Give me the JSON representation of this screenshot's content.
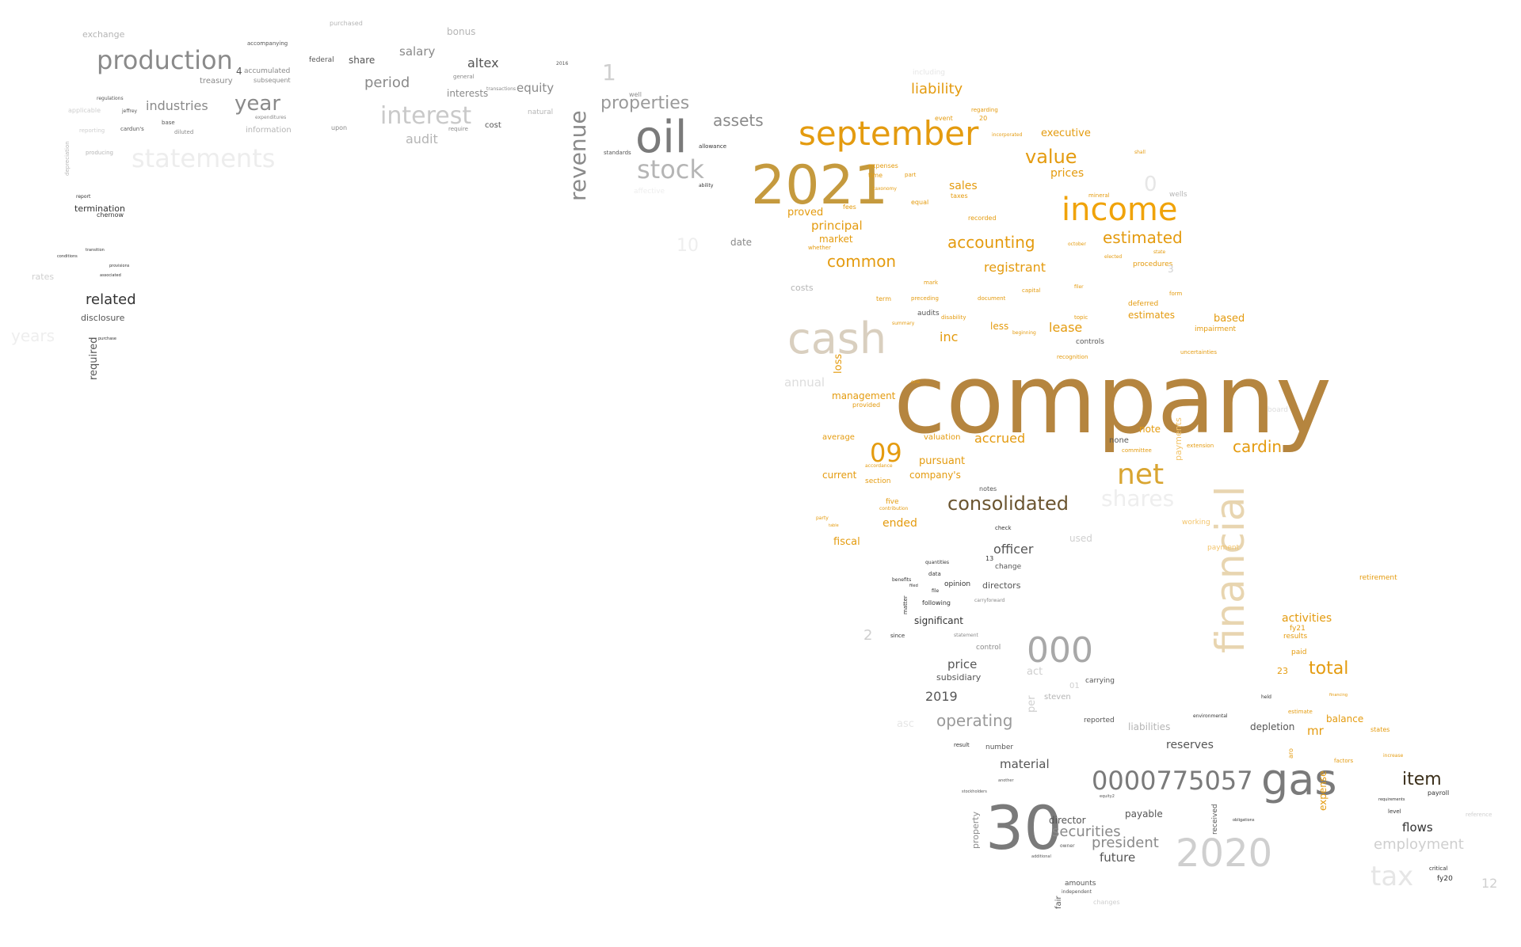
{
  "words": [
    {
      "t": "company",
      "c": "#b5853f"
    },
    {
      "t": "2021",
      "c": "#c59a3e"
    },
    {
      "t": "september",
      "c": "#e49b0f"
    },
    {
      "t": "income",
      "c": "#f0a30a"
    },
    {
      "t": "net",
      "c": "#d9a531"
    },
    {
      "t": "financial",
      "c": "#e8d5b0"
    },
    {
      "t": "cash",
      "c": "#d9cfbf"
    },
    {
      "t": "oil",
      "c": "#7a7a7a"
    },
    {
      "t": "gas",
      "c": "#7a7a7a"
    },
    {
      "t": "30",
      "c": "#7a7a7a"
    },
    {
      "t": "2020",
      "c": "#cfcfcf"
    },
    {
      "t": "0000775057",
      "c": "#7a7a7a"
    },
    {
      "t": "000",
      "c": "#a8a8a8"
    },
    {
      "t": "production",
      "c": "#8a8a8a"
    },
    {
      "t": "statements",
      "c": "#ededed"
    },
    {
      "t": "interest",
      "c": "#c9c9c9"
    },
    {
      "t": "revenue",
      "c": "#8a8a8a"
    },
    {
      "t": "stock",
      "c": "#b5b5b5"
    },
    {
      "t": "year",
      "c": "#8a8a8a"
    },
    {
      "t": "properties",
      "c": "#9a9a9a"
    },
    {
      "t": "assets",
      "c": "#8a8a8a"
    },
    {
      "t": "consolidated",
      "c": "#6b5530"
    },
    {
      "t": "09",
      "c": "#e49b0f"
    },
    {
      "t": "value",
      "c": "#e49b0f"
    },
    {
      "t": "estimated",
      "c": "#e49b0f"
    },
    {
      "t": "accounting",
      "c": "#e49b0f"
    },
    {
      "t": "common",
      "c": "#e49b0f"
    },
    {
      "t": "cardin",
      "c": "#e49b0f"
    },
    {
      "t": "liability",
      "c": "#e49b0f"
    },
    {
      "t": "shares",
      "c": "#eeeeee"
    },
    {
      "t": "item",
      "c": "#3b2f1a"
    },
    {
      "t": "total",
      "c": "#e49b0f"
    },
    {
      "t": "tax",
      "c": "#e6e6e6"
    },
    {
      "t": "employment",
      "c": "#cfcfcf"
    },
    {
      "t": "operating",
      "c": "#9a9a9a"
    },
    {
      "t": "securities",
      "c": "#8a8a8a"
    },
    {
      "t": "president",
      "c": "#8a8a8a"
    },
    {
      "t": "related",
      "c": "#333333"
    },
    {
      "t": "officer",
      "c": "#555555"
    },
    {
      "t": "registrant",
      "c": "#e49b0f"
    },
    {
      "t": "inc",
      "c": "#e49b0f"
    },
    {
      "t": "lease",
      "c": "#e49b0f"
    },
    {
      "t": "accrued",
      "c": "#e49b0f"
    },
    {
      "t": "period",
      "c": "#8a8a8a"
    },
    {
      "t": "industries",
      "c": "#8a8a8a"
    },
    {
      "t": "altex",
      "c": "#555555"
    },
    {
      "t": "salary",
      "c": "#8a8a8a"
    },
    {
      "t": "audit",
      "c": "#b5b5b5"
    },
    {
      "t": "equity",
      "c": "#8a8a8a"
    },
    {
      "t": "price",
      "c": "#555555"
    },
    {
      "t": "2019",
      "c": "#555555"
    },
    {
      "t": "reserves",
      "c": "#555555"
    },
    {
      "t": "material",
      "c": "#555555"
    },
    {
      "t": "flows",
      "c": "#333333"
    },
    {
      "t": "future",
      "c": "#555555"
    },
    {
      "t": "activities",
      "c": "#e49b0f"
    },
    {
      "t": "mr",
      "c": "#e49b0f"
    },
    {
      "t": "principal",
      "c": "#e49b0f"
    },
    {
      "t": "sales",
      "c": "#e49b0f"
    },
    {
      "t": "management",
      "c": "#e49b0f"
    },
    {
      "t": "pursuant",
      "c": "#e49b0f"
    },
    {
      "t": "fiscal",
      "c": "#e49b0f"
    },
    {
      "t": "ended",
      "c": "#e49b0f"
    },
    {
      "t": "prices",
      "c": "#e49b0f"
    },
    {
      "t": "executive",
      "c": "#e49b0f"
    },
    {
      "t": "estimates",
      "c": "#e49b0f"
    },
    {
      "t": "based",
      "c": "#e49b0f"
    },
    {
      "t": "proved",
      "c": "#e49b0f"
    },
    {
      "t": "market",
      "c": "#e49b0f"
    },
    {
      "t": "current",
      "c": "#e49b0f"
    },
    {
      "t": "company's",
      "c": "#e49b0f"
    },
    {
      "t": "balance",
      "c": "#e49b0f"
    },
    {
      "t": "expense",
      "c": "#e49b0f"
    },
    {
      "t": "payments",
      "c": "#f3c46a"
    },
    {
      "t": "loss",
      "c": "#e49b0f"
    },
    {
      "t": "significant",
      "c": "#333333"
    },
    {
      "t": "directors",
      "c": "#555555"
    },
    {
      "t": "subsidiary",
      "c": "#555555"
    },
    {
      "t": "depletion",
      "c": "#555555"
    },
    {
      "t": "payable",
      "c": "#555555"
    },
    {
      "t": "director",
      "c": "#555555"
    },
    {
      "t": "disclosure",
      "c": "#555555"
    },
    {
      "t": "termination",
      "c": "#333333"
    },
    {
      "t": "required",
      "c": "#555555"
    },
    {
      "t": "share",
      "c": "#555555"
    },
    {
      "t": "interests",
      "c": "#8a8a8a"
    },
    {
      "t": "bonus",
      "c": "#b5b5b5"
    },
    {
      "t": "exchange",
      "c": "#b5b5b5"
    },
    {
      "t": "treasury",
      "c": "#8a8a8a"
    },
    {
      "t": "accumulated",
      "c": "#8a8a8a"
    },
    {
      "t": "1",
      "c": "#cfcfcf"
    },
    {
      "t": "0",
      "c": "#e6e6e6"
    },
    {
      "t": "10",
      "c": "#eeeeee"
    },
    {
      "t": "2",
      "c": "#cfcfcf"
    },
    {
      "t": "12",
      "c": "#cfcfcf"
    },
    {
      "t": "23",
      "c": "#e49b0f"
    },
    {
      "t": "fy21",
      "c": "#e49b0f"
    },
    {
      "t": "fy20",
      "c": "#333333"
    },
    {
      "t": "date",
      "c": "#8a8a8a"
    },
    {
      "t": "costs",
      "c": "#b5b5b5"
    },
    {
      "t": "annual",
      "c": "#dddddd"
    },
    {
      "t": "used",
      "c": "#cfcfcf"
    },
    {
      "t": "act",
      "c": "#cfcfcf"
    },
    {
      "t": "liabilities",
      "c": "#b5b5b5"
    },
    {
      "t": "property",
      "c": "#8a8a8a"
    },
    {
      "t": "received",
      "c": "#555555"
    },
    {
      "t": "rates",
      "c": "#cfcfcf"
    },
    {
      "t": "years",
      "c": "#eeeeee"
    },
    {
      "t": "information",
      "c": "#b5b5b5"
    },
    {
      "t": "federal",
      "c": "#555555"
    },
    {
      "t": "cost",
      "c": "#555555"
    },
    {
      "t": "retirement",
      "c": "#e49b0f"
    },
    {
      "t": "results",
      "c": "#e49b0f"
    },
    {
      "t": "impairment",
      "c": "#e49b0f"
    },
    {
      "t": "deferred",
      "c": "#e49b0f"
    },
    {
      "t": "valuation",
      "c": "#e49b0f"
    },
    {
      "t": "average",
      "c": "#e49b0f"
    },
    {
      "t": "note",
      "c": "#e49b0f"
    },
    {
      "t": "five",
      "c": "#e49b0f"
    },
    {
      "t": "none",
      "c": "#555555"
    },
    {
      "t": "audits",
      "c": "#555555"
    },
    {
      "t": "controls",
      "c": "#555555"
    },
    {
      "t": "procedures",
      "c": "#e49b0f"
    },
    {
      "t": "wells",
      "c": "#b5b5b5"
    },
    {
      "t": "less",
      "c": "#e49b0f"
    },
    {
      "t": "working",
      "c": "#f3c46a"
    },
    {
      "t": "payment",
      "c": "#f3c46a"
    },
    {
      "t": "steven",
      "c": "#b5b5b5"
    },
    {
      "t": "reported",
      "c": "#555555"
    },
    {
      "t": "carrying",
      "c": "#555555"
    },
    {
      "t": "number",
      "c": "#555555"
    },
    {
      "t": "amounts",
      "c": "#555555"
    },
    {
      "t": "fair",
      "c": "#555555"
    },
    {
      "t": "per",
      "c": "#cfcfcf"
    },
    {
      "t": "change",
      "c": "#555555"
    },
    {
      "t": "notes",
      "c": "#555555"
    },
    {
      "t": "opinion",
      "c": "#333333"
    },
    {
      "t": "control",
      "c": "#8a8a8a"
    },
    {
      "t": "payroll",
      "c": "#333333"
    },
    {
      "t": "critical",
      "c": "#333333"
    },
    {
      "t": "level",
      "c": "#333333"
    },
    {
      "t": "states",
      "c": "#e49b0f"
    },
    {
      "t": "aro",
      "c": "#e49b0f"
    },
    {
      "t": "paid",
      "c": "#e49b0f"
    },
    {
      "t": "section",
      "c": "#e49b0f"
    },
    {
      "t": "term",
      "c": "#e49b0f"
    },
    {
      "t": "equal",
      "c": "#e49b0f"
    },
    {
      "t": "recorded",
      "c": "#e49b0f"
    },
    {
      "t": "provided",
      "c": "#e49b0f"
    },
    {
      "t": "fees",
      "c": "#e49b0f"
    },
    {
      "t": "mineral",
      "c": "#e49b0f"
    },
    {
      "t": "form",
      "c": "#e49b0f"
    },
    {
      "t": "mark",
      "c": "#e49b0f"
    },
    {
      "t": "capital",
      "c": "#e49b0f"
    },
    {
      "t": "topic",
      "c": "#e49b0f"
    },
    {
      "t": "event",
      "c": "#e49b0f"
    },
    {
      "t": "including",
      "c": "#e6e6e6"
    },
    {
      "t": "regarding",
      "c": "#e49b0f"
    },
    {
      "t": "document",
      "c": "#e49b0f"
    },
    {
      "t": "disability",
      "c": "#e49b0f"
    },
    {
      "t": "preceding",
      "c": "#e49b0f"
    },
    {
      "t": "taxes",
      "c": "#e49b0f"
    },
    {
      "t": "october",
      "c": "#e49b0f"
    },
    {
      "t": "recognition",
      "c": "#e49b0f"
    },
    {
      "t": "uncertainties",
      "c": "#e49b0f"
    },
    {
      "t": "extension",
      "c": "#e49b0f"
    },
    {
      "t": "committee",
      "c": "#e49b0f"
    },
    {
      "t": "natural",
      "c": "#b5b5b5"
    },
    {
      "t": "well",
      "c": "#8a8a8a"
    },
    {
      "t": "transactions",
      "c": "#8a8a8a"
    },
    {
      "t": "general",
      "c": "#8a8a8a"
    },
    {
      "t": "require",
      "c": "#8a8a8a"
    },
    {
      "t": "upon",
      "c": "#8a8a8a"
    },
    {
      "t": "purchased",
      "c": "#b5b5b5"
    },
    {
      "t": "diluted",
      "c": "#8a8a8a"
    },
    {
      "t": "base",
      "c": "#555555"
    },
    {
      "t": "regulations",
      "c": "#555555"
    },
    {
      "t": "jeffrey",
      "c": "#555555"
    },
    {
      "t": "cardun's",
      "c": "#555555"
    },
    {
      "t": "reporting",
      "c": "#cfcfcf"
    },
    {
      "t": "producing",
      "c": "#b5b5b5"
    },
    {
      "t": "applicable",
      "c": "#cfcfcf"
    },
    {
      "t": "depreciation",
      "c": "#b5b5b5"
    },
    {
      "t": "chernow",
      "c": "#333333"
    },
    {
      "t": "report",
      "c": "#333333"
    },
    {
      "t": "provisions",
      "c": "#333333"
    },
    {
      "t": "transition",
      "c": "#333333"
    },
    {
      "t": "conditions",
      "c": "#333333"
    },
    {
      "t": "associated",
      "c": "#333333"
    },
    {
      "t": "purchase",
      "c": "#333333"
    },
    {
      "t": "subsequent",
      "c": "#8a8a8a"
    },
    {
      "t": "expenditures",
      "c": "#8a8a8a"
    },
    {
      "t": "accompanying",
      "c": "#555555"
    },
    {
      "t": "allowance",
      "c": "#333333"
    },
    {
      "t": "ability",
      "c": "#333333"
    },
    {
      "t": "standards",
      "c": "#555555"
    },
    {
      "t": "affective",
      "c": "#eeeeee"
    },
    {
      "t": "following",
      "c": "#333333"
    },
    {
      "t": "benefits",
      "c": "#333333"
    },
    {
      "t": "data",
      "c": "#333333"
    },
    {
      "t": "since",
      "c": "#333333"
    },
    {
      "t": "statement",
      "c": "#8a8a8a"
    },
    {
      "t": "check",
      "c": "#333333"
    },
    {
      "t": "quantities",
      "c": "#333333"
    },
    {
      "t": "file",
      "c": "#333333"
    },
    {
      "t": "filed",
      "c": "#333333"
    },
    {
      "t": "carryforward",
      "c": "#8a8a8a"
    },
    {
      "t": "result",
      "c": "#333333"
    },
    {
      "t": "matter",
      "c": "#333333"
    },
    {
      "t": "board",
      "c": "#dddddd"
    },
    {
      "t": "factors",
      "c": "#e49b0f"
    },
    {
      "t": "increase",
      "c": "#e49b0f"
    },
    {
      "t": "financing",
      "c": "#e49b0f"
    },
    {
      "t": "estimate",
      "c": "#e49b0f"
    },
    {
      "t": "requirements",
      "c": "#333333"
    },
    {
      "t": "environmental",
      "c": "#333333"
    },
    {
      "t": "held",
      "c": "#333333"
    },
    {
      "t": "obligations",
      "c": "#333333"
    },
    {
      "t": "reference",
      "c": "#cfcfcf"
    },
    {
      "t": "additional",
      "c": "#555555"
    },
    {
      "t": "owner",
      "c": "#555555"
    },
    {
      "t": "equity2",
      "c": "#555555"
    },
    {
      "t": "independent",
      "c": "#555555"
    },
    {
      "t": "changes",
      "c": "#cfcfcf"
    },
    {
      "t": "another",
      "c": "#555555"
    },
    {
      "t": "stockholders",
      "c": "#555555"
    },
    {
      "t": "whether",
      "c": "#e49b0f"
    },
    {
      "t": "elected",
      "c": "#e49b0f"
    },
    {
      "t": "state",
      "c": "#e49b0f"
    },
    {
      "t": "filer",
      "c": "#e49b0f"
    },
    {
      "t": "accordance",
      "c": "#e49b0f"
    },
    {
      "t": "contribution",
      "c": "#e49b0f"
    },
    {
      "t": "party",
      "c": "#e49b0f"
    },
    {
      "t": "table",
      "c": "#e49b0f"
    },
    {
      "t": "one",
      "c": "#e49b0f"
    },
    {
      "t": "summary",
      "c": "#e49b0f"
    },
    {
      "t": "expenses",
      "c": "#e49b0f"
    },
    {
      "t": "time",
      "c": "#e49b0f"
    },
    {
      "t": "taxonomy",
      "c": "#e49b0f"
    },
    {
      "t": "part",
      "c": "#e49b0f"
    },
    {
      "t": "beginning",
      "c": "#e49b0f"
    },
    {
      "t": "incorporated",
      "c": "#e49b0f"
    },
    {
      "t": "shall",
      "c": "#e49b0f"
    },
    {
      "t": "3",
      "c": "#cfcfcf"
    },
    {
      "t": "4",
      "c": "#555555"
    },
    {
      "t": "13",
      "c": "#333333"
    },
    {
      "t": "20",
      "c": "#e49b0f"
    },
    {
      "t": "01",
      "c": "#cfcfcf"
    },
    {
      "t": "2016",
      "c": "#555555"
    },
    {
      "t": "asc",
      "c": "#e6e6e6"
    }
  ]
}
